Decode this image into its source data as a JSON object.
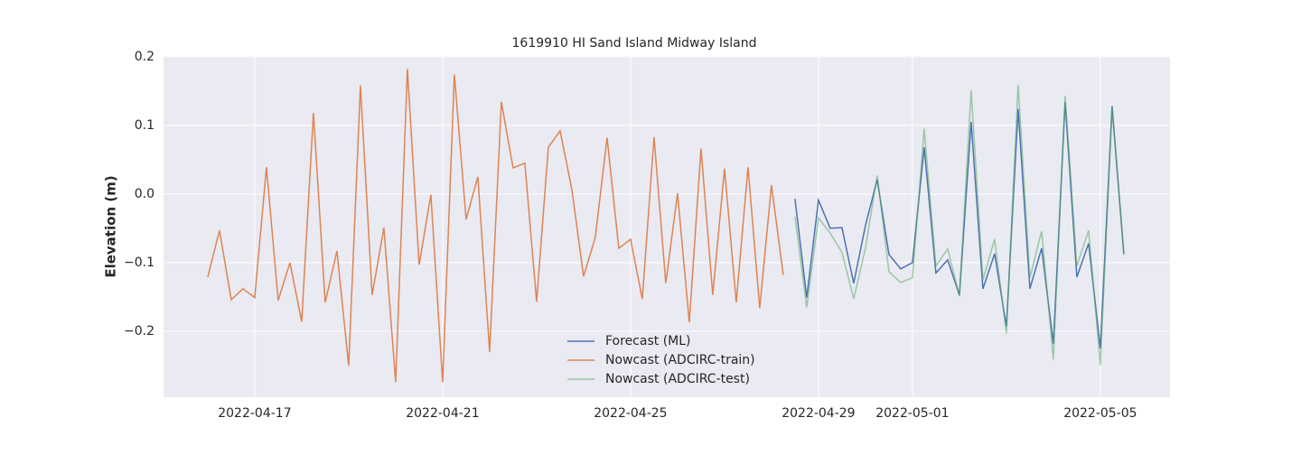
{
  "chart_data": {
    "type": "line",
    "title": "1619910 HI Sand Island Midway Island",
    "y_label": "Elevation (m)",
    "xlim": [
      "2022-04-15T01:25",
      "2022-05-06T11:35"
    ],
    "xticks": [
      "2022-04-17",
      "2022-04-21",
      "2022-04-25",
      "2022-04-29",
      "2022-05-01",
      "2022-05-05"
    ],
    "ylim": [
      -0.296,
      0.201
    ],
    "yticks": [
      {
        "value": -0.2,
        "label": "−0.2"
      },
      {
        "value": -0.1,
        "label": "−0.1"
      },
      {
        "value": 0.0,
        "label": "0.0"
      },
      0.1,
      0.2
    ],
    "grid": true,
    "legend": "lower center",
    "series": [
      {
        "name": "Forecast (ML)",
        "color": "#4c72b0",
        "opacity": 1,
        "x": [
          "2022-04-28T12:00",
          "2022-04-28T18:00",
          "2022-04-29T00:00",
          "2022-04-29T06:00",
          "2022-04-29T12:00",
          "2022-04-29T18:00",
          "2022-04-30T00:00",
          "2022-04-30T06:00",
          "2022-04-30T12:00",
          "2022-04-30T18:00",
          "2022-05-01T00:00",
          "2022-05-01T06:00",
          "2022-05-01T12:00",
          "2022-05-01T18:00",
          "2022-05-02T00:00",
          "2022-05-02T06:00",
          "2022-05-02T12:00",
          "2022-05-02T18:00",
          "2022-05-03T00:00",
          "2022-05-03T06:00",
          "2022-05-03T12:00",
          "2022-05-03T18:00",
          "2022-05-04T00:00",
          "2022-05-04T06:00",
          "2022-05-04T12:00",
          "2022-05-04T18:00",
          "2022-05-05T00:00",
          "2022-05-05T06:00",
          "2022-05-05T12:00"
        ],
        "values": [
          -0.007,
          -0.151,
          -0.009,
          -0.05,
          -0.049,
          -0.13,
          -0.046,
          0.021,
          -0.088,
          -0.109,
          -0.1,
          0.068,
          -0.115,
          -0.096,
          -0.147,
          0.105,
          -0.138,
          -0.087,
          -0.193,
          0.124,
          -0.138,
          -0.079,
          -0.218,
          0.134,
          -0.121,
          -0.072,
          -0.225,
          0.128,
          -0.087
        ]
      },
      {
        "name": "Nowcast (ADCIRC-train)",
        "color": "#dd8452",
        "opacity": 1,
        "x": [
          "2022-04-16T00:00",
          "2022-04-16T06:00",
          "2022-04-16T12:00",
          "2022-04-16T18:00",
          "2022-04-17T00:00",
          "2022-04-17T06:00",
          "2022-04-17T12:00",
          "2022-04-17T18:00",
          "2022-04-18T00:00",
          "2022-04-18T06:00",
          "2022-04-18T12:00",
          "2022-04-18T18:00",
          "2022-04-19T00:00",
          "2022-04-19T06:00",
          "2022-04-19T12:00",
          "2022-04-19T18:00",
          "2022-04-20T00:00",
          "2022-04-20T06:00",
          "2022-04-20T12:00",
          "2022-04-20T18:00",
          "2022-04-21T00:00",
          "2022-04-21T06:00",
          "2022-04-21T12:00",
          "2022-04-21T18:00",
          "2022-04-22T00:00",
          "2022-04-22T06:00",
          "2022-04-22T12:00",
          "2022-04-22T18:00",
          "2022-04-23T00:00",
          "2022-04-23T06:00",
          "2022-04-23T12:00",
          "2022-04-23T18:00",
          "2022-04-24T00:00",
          "2022-04-24T06:00",
          "2022-04-24T12:00",
          "2022-04-24T18:00",
          "2022-04-25T00:00",
          "2022-04-25T06:00",
          "2022-04-25T12:00",
          "2022-04-25T18:00",
          "2022-04-26T00:00",
          "2022-04-26T06:00",
          "2022-04-26T12:00",
          "2022-04-26T18:00",
          "2022-04-27T00:00",
          "2022-04-27T06:00",
          "2022-04-27T12:00",
          "2022-04-27T18:00",
          "2022-04-28T00:00",
          "2022-04-28T06:00"
        ],
        "values": [
          -0.121,
          -0.053,
          -0.154,
          -0.138,
          -0.151,
          0.039,
          -0.155,
          -0.1,
          -0.186,
          0.118,
          -0.158,
          -0.083,
          -0.25,
          0.158,
          -0.147,
          -0.049,
          -0.274,
          0.182,
          -0.103,
          -0.001,
          -0.274,
          0.174,
          -0.037,
          0.025,
          -0.23,
          0.134,
          0.038,
          0.045,
          -0.157,
          0.068,
          0.092,
          0.007,
          -0.12,
          -0.063,
          0.082,
          -0.079,
          -0.066,
          -0.153,
          0.083,
          -0.13,
          0.001,
          -0.187,
          0.066,
          -0.147,
          0.037,
          -0.158,
          0.039,
          -0.166,
          0.013,
          -0.118
        ]
      },
      {
        "name": "Nowcast (ADCIRC-test)",
        "color": "#55a868",
        "opacity": 0.55,
        "x": [
          "2022-04-28T12:00",
          "2022-04-28T18:00",
          "2022-04-29T00:00",
          "2022-04-29T06:00",
          "2022-04-29T12:00",
          "2022-04-29T18:00",
          "2022-04-30T00:00",
          "2022-04-30T06:00",
          "2022-04-30T12:00",
          "2022-04-30T18:00",
          "2022-05-01T00:00",
          "2022-05-01T06:00",
          "2022-05-01T12:00",
          "2022-05-01T18:00",
          "2022-05-02T00:00",
          "2022-05-02T06:00",
          "2022-05-02T12:00",
          "2022-05-02T18:00",
          "2022-05-03T00:00",
          "2022-05-03T06:00",
          "2022-05-03T12:00",
          "2022-05-03T18:00",
          "2022-05-04T00:00",
          "2022-05-04T06:00",
          "2022-05-04T12:00",
          "2022-05-04T18:00",
          "2022-05-05T00:00",
          "2022-05-05T06:00",
          "2022-05-05T12:00"
        ],
        "values": [
          -0.033,
          -0.165,
          -0.035,
          -0.057,
          -0.085,
          -0.153,
          -0.079,
          0.027,
          -0.113,
          -0.129,
          -0.122,
          0.095,
          -0.105,
          -0.08,
          -0.149,
          0.151,
          -0.125,
          -0.066,
          -0.203,
          0.159,
          -0.122,
          -0.054,
          -0.241,
          0.143,
          -0.105,
          -0.053,
          -0.249,
          0.125,
          -0.089
        ]
      }
    ]
  }
}
